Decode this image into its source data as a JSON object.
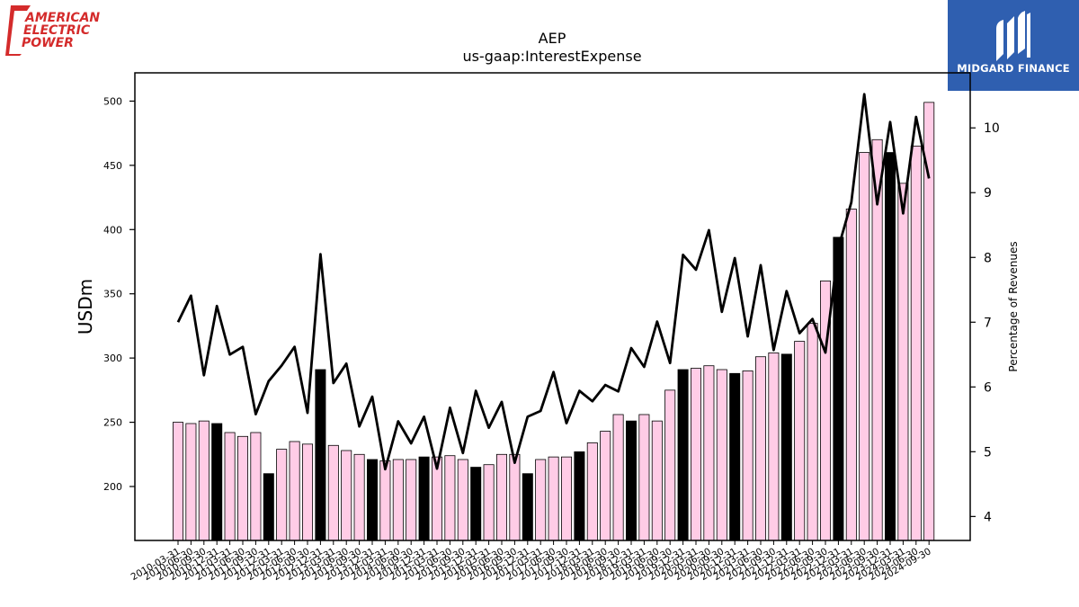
{
  "logos": {
    "left": {
      "lines": [
        "AMERICAN",
        "ELECTRIC",
        "POWER"
      ],
      "color": "#d42b2b"
    },
    "right": {
      "text": "MIDGARD FINANCE",
      "bg": "#2f5fb0"
    }
  },
  "chart_data": {
    "type": "bar",
    "title": "AEP",
    "subtitle": "us-gaap:InterestExpense",
    "ylabel": "USDm",
    "y2label": "Percentage of Revenues",
    "ylim": [
      158,
      522
    ],
    "y2lim": [
      3.63,
      10.85
    ],
    "yticks": [
      200,
      250,
      300,
      350,
      400,
      450,
      500
    ],
    "y2ticks": [
      4,
      5,
      6,
      7,
      8,
      9,
      10
    ],
    "bar_colors": {
      "quarter": "#ffcce6",
      "year_end": "#000000",
      "edge": "#000000"
    },
    "line_color": "#000000",
    "categories": [
      "2010-03-31",
      "2010-06-30",
      "2010-09-30",
      "2010-12-31",
      "2011-03-31",
      "2011-06-30",
      "2011-09-30",
      "2011-12-31",
      "2012-03-31",
      "2012-06-30",
      "2012-09-30",
      "2012-12-31",
      "2013-03-31",
      "2013-06-30",
      "2013-09-30",
      "2013-12-31",
      "2014-03-31",
      "2014-06-30",
      "2014-09-30",
      "2014-12-31",
      "2015-03-31",
      "2015-06-30",
      "2015-09-30",
      "2015-12-31",
      "2016-03-31",
      "2016-06-30",
      "2016-09-30",
      "2016-12-31",
      "2017-03-31",
      "2017-06-30",
      "2017-09-30",
      "2017-12-31",
      "2018-03-31",
      "2018-06-30",
      "2018-09-30",
      "2018-12-31",
      "2019-03-31",
      "2019-06-30",
      "2019-09-30",
      "2019-12-31",
      "2020-03-31",
      "2020-06-30",
      "2020-09-30",
      "2020-12-31",
      "2021-03-31",
      "2021-06-30",
      "2021-09-30",
      "2021-12-31",
      "2022-03-31",
      "2022-06-30",
      "2022-09-30",
      "2022-12-31",
      "2023-03-31",
      "2023-06-30",
      "2023-09-30",
      "2023-12-31",
      "2024-03-31",
      "2024-06-30",
      "2024-09-30"
    ],
    "year_end": [
      false,
      false,
      false,
      true,
      false,
      false,
      false,
      true,
      false,
      false,
      false,
      true,
      false,
      false,
      false,
      true,
      false,
      false,
      false,
      true,
      false,
      false,
      false,
      true,
      false,
      false,
      false,
      true,
      false,
      false,
      false,
      true,
      false,
      false,
      false,
      true,
      false,
      false,
      false,
      true,
      false,
      false,
      false,
      true,
      false,
      false,
      false,
      true,
      false,
      false,
      false,
      true,
      false,
      false,
      false,
      true,
      false,
      false,
      false
    ],
    "values": [
      250,
      249,
      251,
      249,
      242,
      239,
      242,
      210,
      229,
      235,
      233,
      291,
      232,
      228,
      225,
      221,
      220,
      221,
      221,
      223,
      223,
      224,
      221,
      215,
      217,
      225,
      225,
      210,
      221,
      223,
      223,
      227,
      234,
      243,
      256,
      251,
      256,
      251,
      275,
      291,
      292,
      294,
      291,
      288,
      290,
      301,
      304,
      303,
      313,
      327,
      360,
      394,
      416,
      460,
      470,
      460,
      436,
      465,
      499
    ],
    "pct_revenues": [
      7.0,
      7.41,
      6.18,
      7.25,
      6.5,
      6.62,
      5.58,
      6.09,
      6.33,
      6.62,
      5.6,
      8.05,
      6.06,
      6.36,
      5.39,
      5.85,
      4.73,
      5.47,
      5.13,
      5.54,
      4.74,
      5.68,
      4.98,
      5.94,
      5.37,
      5.77,
      4.83,
      5.54,
      5.63,
      6.23,
      5.44,
      5.94,
      5.78,
      6.03,
      5.93,
      6.6,
      6.31,
      7.01,
      6.37,
      8.04,
      7.81,
      8.42,
      7.16,
      7.99,
      6.78,
      7.88,
      6.57,
      7.48,
      6.83,
      7.05,
      6.53,
      8.15,
      8.85,
      10.52,
      8.82,
      10.09,
      8.68,
      10.17,
      9.22
    ]
  }
}
